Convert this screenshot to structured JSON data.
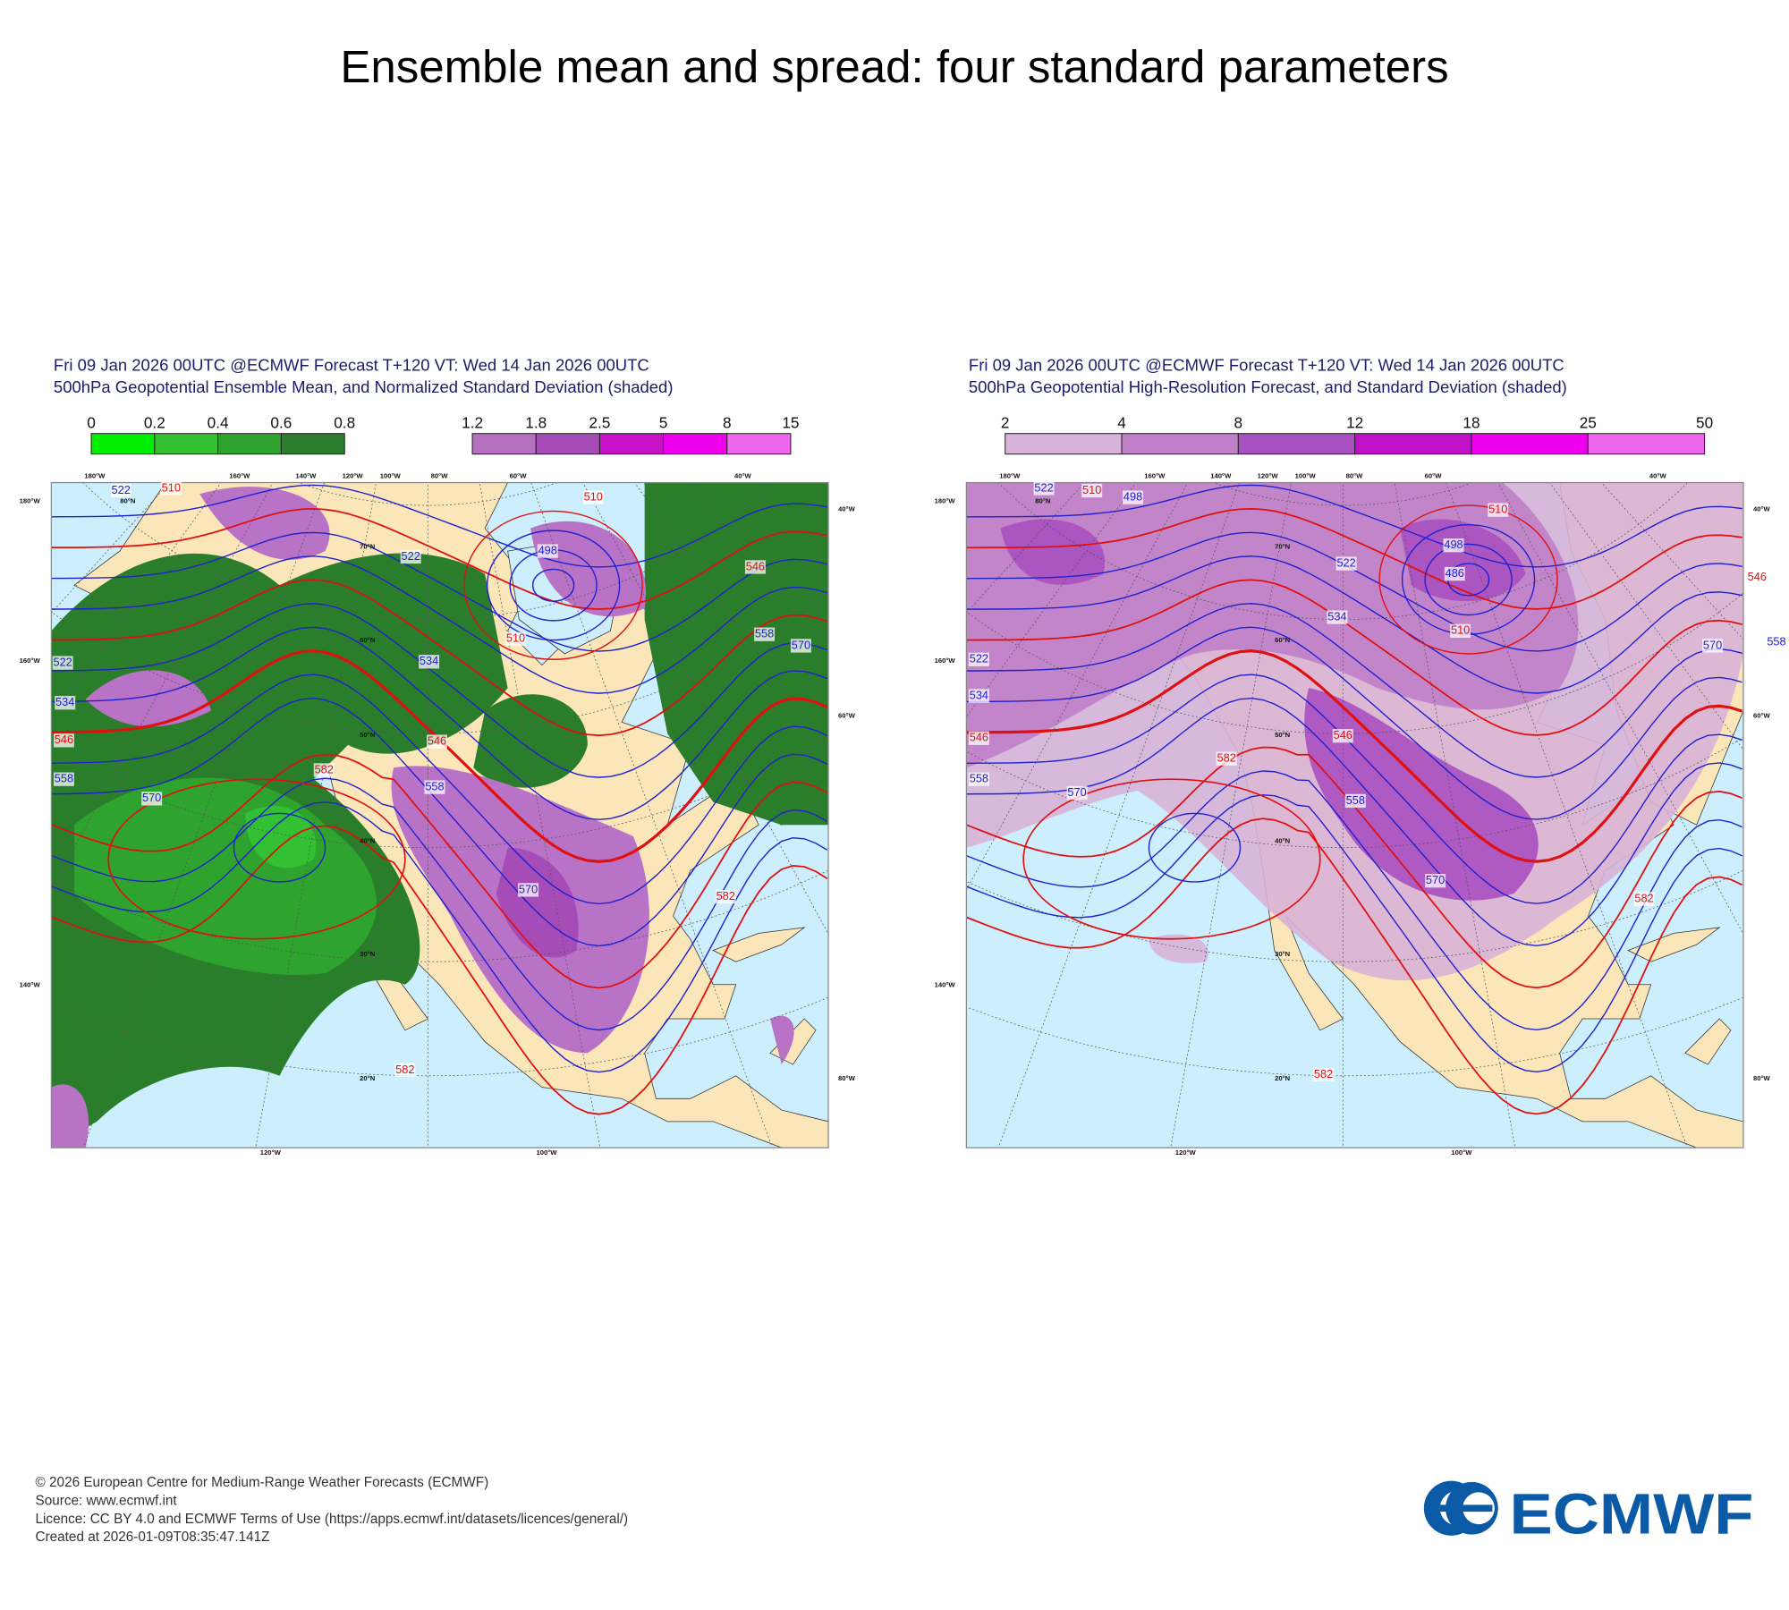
{
  "title": "Ensemble mean and spread: four standard parameters",
  "panels": [
    {
      "header": [
        "Fri 09 Jan 2026 00UTC @ECMWF Forecast T+120 VT: Wed 14 Jan 2026 00UTC",
        "500hPa Geopotential Ensemble Mean, and Normalized Standard Deviation (shaded)"
      ],
      "colorbars": [
        {
          "ticks": [
            0,
            0.2,
            0.4,
            0.6,
            0.8
          ],
          "colors": [
            "#00ee00",
            "#33c033",
            "#2ea42e",
            "#2a7d2a"
          ]
        },
        {
          "ticks": [
            1.2,
            1.8,
            2.5,
            5,
            8,
            15
          ],
          "colors": [
            "#b570c0",
            "#a64cb8",
            "#c812c8",
            "#ee00ee",
            "#ee66ee"
          ]
        }
      ],
      "contour_labels": [
        "522",
        "510",
        "522",
        "498",
        "510",
        "510",
        "546",
        "558",
        "570",
        "522",
        "534",
        "546",
        "558",
        "570",
        "534",
        "546",
        "558",
        "582",
        "570",
        "582",
        "582"
      ],
      "grid_labels": [
        "180°W",
        "160°W",
        "140°W",
        "120°W",
        "100°W",
        "80°W",
        "60°W",
        "40°W",
        "180°W",
        "160°W",
        "140°W",
        "40°W",
        "60°W",
        "80°W",
        "120°W",
        "100°W",
        "80°N",
        "70°N",
        "60°N",
        "50°N",
        "40°N",
        "30°N",
        "20°N"
      ]
    },
    {
      "header": [
        "Fri 09 Jan 2026 00UTC @ECMWF Forecast T+120 VT: Wed 14 Jan 2026 00UTC",
        "500hPa Geopotential High-Resolution Forecast, and Standard Deviation (shaded)"
      ],
      "colorbars": [
        {
          "ticks": [
            2,
            4,
            8,
            12,
            18,
            25,
            50
          ],
          "colors": [
            "#d8b2d8",
            "#c080c8",
            "#a850c0",
            "#c010c8",
            "#ee00ee",
            "#ee66ee"
          ]
        }
      ],
      "contour_labels": [
        "522",
        "510",
        "498",
        "522",
        "498",
        "486",
        "510",
        "510",
        "534",
        "546",
        "558",
        "570",
        "522",
        "534",
        "546",
        "558",
        "570",
        "582",
        "546",
        "558",
        "570",
        "582",
        "582"
      ],
      "grid_labels": [
        "180°W",
        "160°W",
        "140°W",
        "120°W",
        "100°W",
        "80°W",
        "60°W",
        "40°W",
        "180°W",
        "160°W",
        "140°W",
        "40°W",
        "60°W",
        "80°W",
        "120°W",
        "100°W",
        "80°N",
        "70°N",
        "60°N",
        "50°N",
        "40°N",
        "30°N",
        "20°N"
      ]
    }
  ],
  "footer": [
    "© 2026 European Centre for Medium-Range Weather Forecasts (ECMWF)",
    "Source: www.ecmwf.int",
    "Licence: CC BY 4.0 and ECMWF Terms of Use (https://apps.ecmwf.int/datasets/licences/general/)",
    "Created at 2026-01-09T08:35:47.141Z"
  ],
  "logo": "ECMWF"
}
